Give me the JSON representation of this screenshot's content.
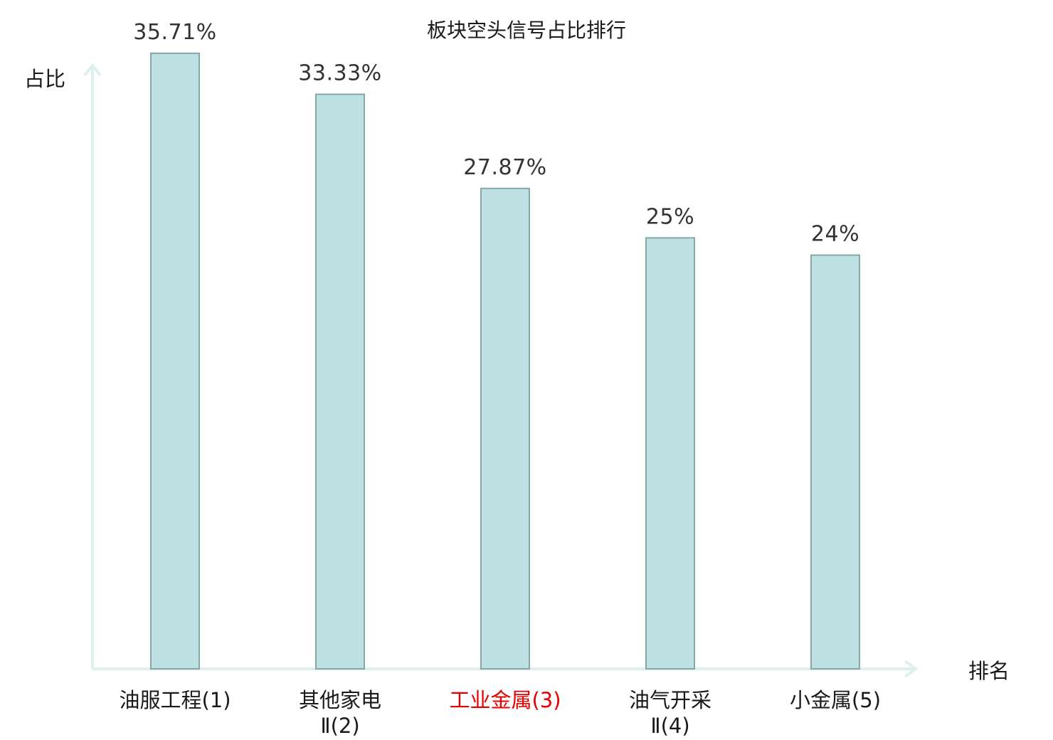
{
  "chart_data": {
    "type": "bar",
    "title": "板块空头信号占比排行",
    "ylabel": "占比",
    "xlabel": "排名",
    "ylim": [
      0,
      38.8
    ],
    "grid": false,
    "categories": [
      {
        "lines": [
          "油服工程(1)"
        ],
        "highlight": false
      },
      {
        "lines": [
          "其他家电",
          "Ⅱ(2)"
        ],
        "highlight": false
      },
      {
        "lines": [
          "工业金属(3)"
        ],
        "highlight": true
      },
      {
        "lines": [
          "油气开采",
          "Ⅱ(4)"
        ],
        "highlight": false
      },
      {
        "lines": [
          "小金属(5)"
        ],
        "highlight": false
      }
    ],
    "values": [
      35.71,
      33.33,
      27.87,
      25,
      24
    ],
    "value_labels": [
      "35.71%",
      "33.33%",
      "27.87%",
      "25%",
      "24%"
    ]
  },
  "colors": {
    "bar_fill": "#bde0e2",
    "bar_stroke": "#86a7a8",
    "axis": "#ddf0ee",
    "highlight_text": "#e60000",
    "normal_text": "#1a1a1a",
    "value_text": "#333333"
  }
}
